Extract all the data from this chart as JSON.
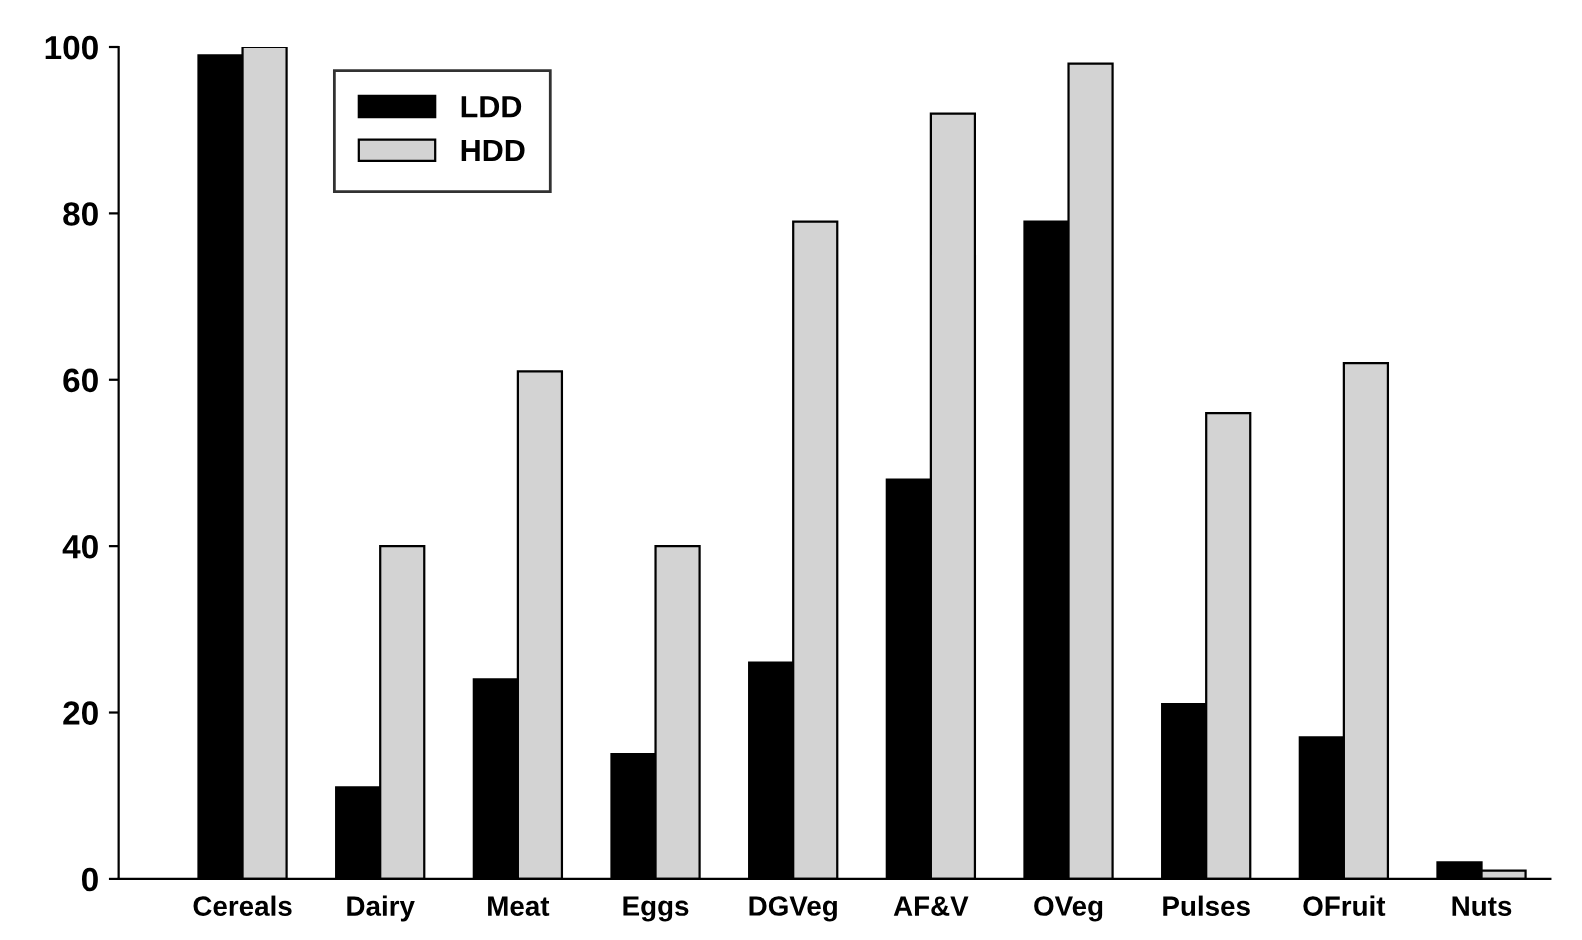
{
  "chart_data": {
    "type": "bar",
    "categories": [
      "Cereals",
      "Dairy",
      "Meat",
      "Eggs",
      "DGVeg",
      "AF&V",
      "OVeg",
      "Pulses",
      "OFruit",
      "Nuts"
    ],
    "series": [
      {
        "name": "LDD",
        "color": "#000000",
        "values": [
          99,
          11,
          24,
          15,
          26,
          48,
          79,
          21,
          17,
          2
        ]
      },
      {
        "name": "HDD",
        "color": "#d3d3d3",
        "values": [
          100,
          40,
          61,
          40,
          79,
          92,
          98,
          56,
          62,
          1
        ]
      }
    ],
    "ylim": [
      0,
      100
    ],
    "yticks": [
      0,
      20,
      40,
      60,
      80,
      100
    ],
    "grid": false,
    "legend": "top left"
  }
}
